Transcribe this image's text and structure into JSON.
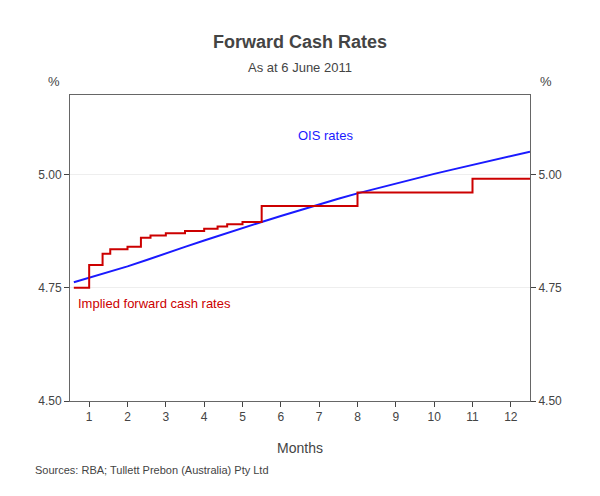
{
  "chart_data": {
    "type": "line",
    "title": "Forward Cash Rates",
    "subtitle": "As at 6 June 2011",
    "xlabel": "Months",
    "ylabel": "%",
    "y2label": "%",
    "source": "Sources: RBA; Tullett Prebon (Australia) Pty Ltd",
    "xlim": [
      0.5,
      12.5
    ],
    "xticks": [
      1,
      2,
      3,
      4,
      5,
      6,
      7,
      8,
      9,
      10,
      11,
      12
    ],
    "ylim": [
      4.5,
      5.175
    ],
    "yticks": [
      {
        "value": 4.5,
        "label": "4.50"
      },
      4.75,
      {
        "value": 5.0,
        "label": "5.00"
      }
    ],
    "y2lim": [
      4.5,
      5.175
    ],
    "y2ticks": [
      {
        "value": 4.5,
        "label": "4.50"
      },
      4.75,
      {
        "value": 5.0,
        "label": "5.00"
      }
    ],
    "grid": "y",
    "series": [
      {
        "name": "OIS rates",
        "color": "#1a1aff",
        "x": [
          0.6,
          1.0,
          1.5,
          2.0,
          2.5,
          3.0,
          3.5,
          4.0,
          4.5,
          5.0,
          5.5,
          6.0,
          6.5,
          7.0,
          7.5,
          8.0,
          8.5,
          9.0,
          9.5,
          10.0,
          10.5,
          11.0,
          11.5,
          12.0,
          12.5
        ],
        "values": [
          4.762,
          4.772,
          4.784,
          4.797,
          4.811,
          4.826,
          4.84,
          4.854,
          4.868,
          4.882,
          4.895,
          4.908,
          4.921,
          4.934,
          4.946,
          4.958,
          4.969,
          4.98,
          4.991,
          5.001,
          5.011,
          5.021,
          5.031,
          5.041,
          5.05
        ]
      },
      {
        "name": "Implied forward cash rates",
        "color": "#cc0000",
        "x": [
          0.6,
          1.0,
          1.0,
          1.35,
          1.35,
          1.55,
          1.55,
          2.0,
          2.0,
          2.35,
          2.35,
          2.6,
          2.6,
          3.0,
          3.0,
          3.5,
          3.5,
          4.0,
          4.0,
          4.35,
          4.35,
          4.6,
          4.6,
          5.0,
          5.0,
          5.5,
          5.5,
          8.0,
          8.0,
          11.0,
          11.0,
          12.5
        ],
        "values": [
          4.75,
          4.75,
          4.8,
          4.8,
          4.825,
          4.825,
          4.835,
          4.835,
          4.84,
          4.84,
          4.86,
          4.86,
          4.865,
          4.865,
          4.87,
          4.87,
          4.875,
          4.875,
          4.88,
          4.88,
          4.885,
          4.885,
          4.89,
          4.89,
          4.895,
          4.895,
          4.93,
          4.93,
          4.96,
          4.96,
          4.99,
          4.99
        ]
      }
    ],
    "annotations": [
      {
        "text": "OIS rates",
        "x": 6.4,
        "y": 5.065,
        "color": "#1a1aff"
      },
      {
        "text": "Implied forward cash rates",
        "x": 0.65,
        "y": 4.695,
        "color": "#cc0000"
      }
    ]
  }
}
